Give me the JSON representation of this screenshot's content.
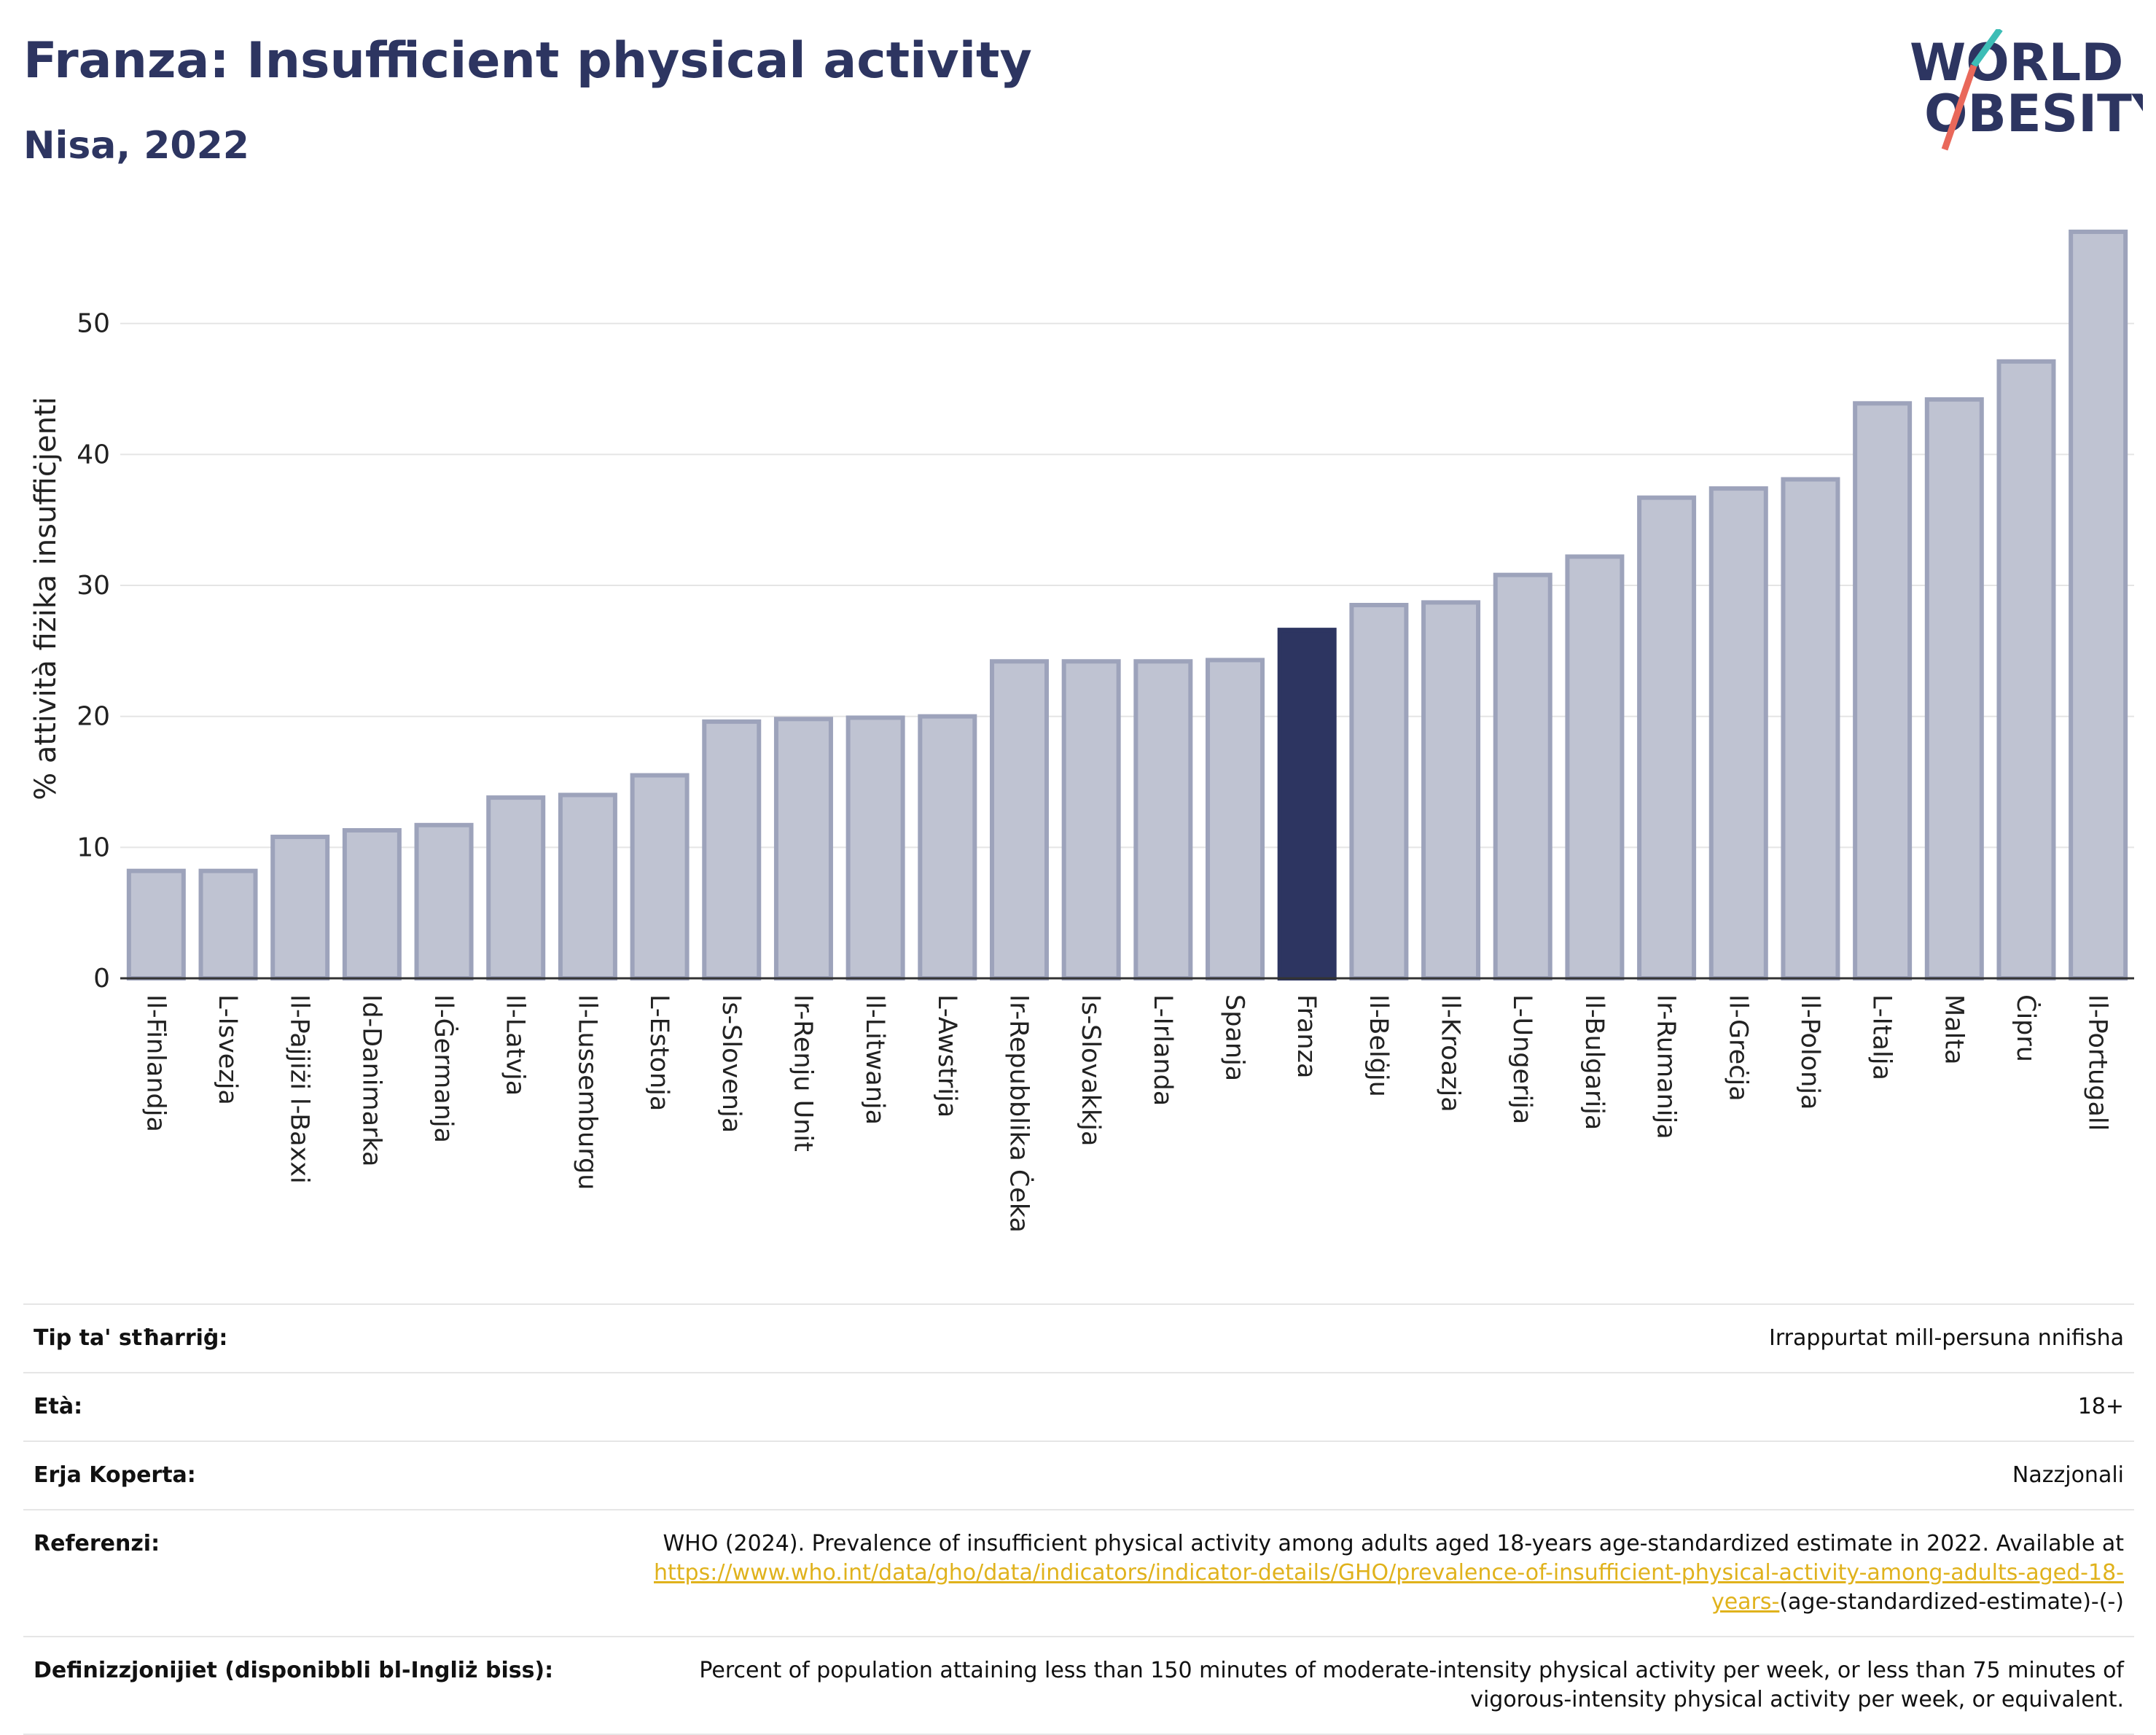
{
  "header": {
    "title": "Franza: Insufficient physical activity",
    "subtitle": "Nisa, 2022"
  },
  "logo": {
    "line1": "WORLD",
    "line2": "OBESITY"
  },
  "colors": {
    "bar": "#bfc3d2",
    "bar_border": "#9da3bb",
    "highlight": "#2d3561",
    "text_dark": "#2d3561",
    "link": "#e0b21c",
    "logo_teal": "#3dbdb6",
    "logo_coral": "#e9685a"
  },
  "chart_data": {
    "type": "bar",
    "categories": [
      "Il-Finlandja",
      "L-Isvezja",
      "Il-Pajjiżi l-Baxxi",
      "Id-Danimarka",
      "Il-Ġermanja",
      "Il-Latvja",
      "Il-Lussemburgu",
      "L-Estonja",
      "Is-Slovenja",
      "Ir-Renju Unit",
      "Il-Litwanja",
      "L-Awstrija",
      "Ir-Repubblika Ċeka",
      "Is-Slovakkja",
      "L-Irlanda",
      "Spanja",
      "Franza",
      "Il-Belġju",
      "Il-Kroazja",
      "L-Ungerija",
      "Il-Bulgarija",
      "Ir-Rumanija",
      "Il-Greċja",
      "Il-Polonja",
      "L-Italja",
      "Malta",
      "Ċipru",
      "Il-Portugall"
    ],
    "values": [
      8.2,
      8.2,
      10.8,
      11.3,
      11.7,
      13.8,
      14.0,
      15.5,
      19.6,
      19.8,
      19.9,
      20.0,
      24.2,
      24.2,
      24.2,
      24.3,
      26.6,
      28.5,
      28.7,
      30.8,
      32.2,
      36.7,
      37.4,
      38.1,
      43.9,
      44.2,
      47.1,
      57.0
    ],
    "highlight": "Franza",
    "ylabel": "% attività fiżika insuffiċjenti",
    "xlabel": "",
    "ylim": [
      0,
      58
    ],
    "yticks": [
      0,
      10,
      20,
      30,
      40,
      50
    ],
    "grid": true
  },
  "info": {
    "rows": [
      {
        "key": "Tip ta' stħarriġ:",
        "value": "Irrappurtat mill-persuna nnifisha"
      },
      {
        "key": "Età:",
        "value": "18+"
      },
      {
        "key": "Erja Koperta:",
        "value": "Nazzjonali"
      },
      {
        "key": "Referenzi:",
        "value": "WHO (2024). Prevalence of insufficient physical activity among adults aged 18-years age-standardized estimate in 2022. Available at",
        "link": "https://www.who.int/data/gho/data/indicators/indicator-details/GHO/prevalence-of-insufficient-physical-activity-among-adults-aged-18-years-",
        "suffix": "(age-standardized-estimate)-(-)"
      },
      {
        "key": "Definizzjonijiet (disponibbli bl-Ingliż biss):",
        "value": "Percent of population attaining less than 150 minutes of moderate-intensity physical activity per week, or less than 75 minutes of vigorous-intensity physical activity per week, or equivalent."
      }
    ]
  }
}
